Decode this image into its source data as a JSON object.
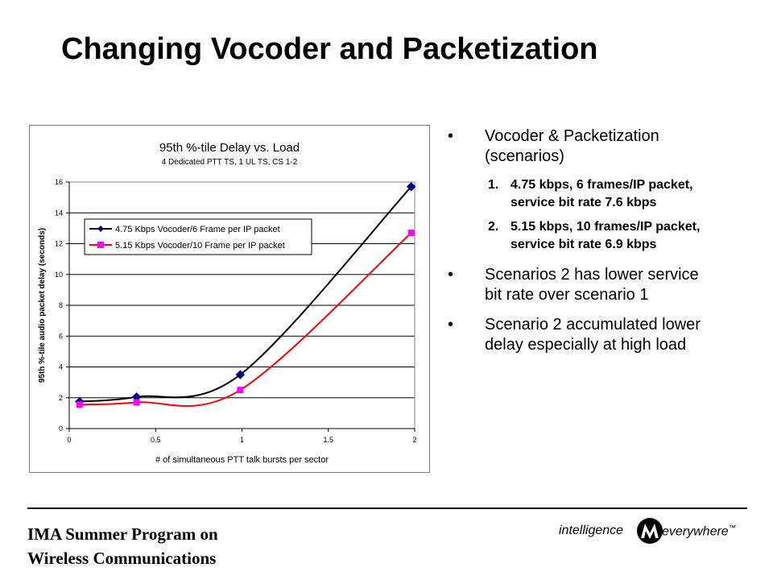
{
  "slide": {
    "title": "Changing Vocoder and Packetization"
  },
  "bullets": {
    "b1": "Vocoder & Packetization (scenarios)",
    "sub": [
      {
        "num": "1.",
        "text": "4.75 kbps, 6 frames/IP packet, service bit rate 7.6 kbps"
      },
      {
        "num": "2.",
        "text": "5.15 kbps, 10 frames/IP packet, service bit rate 6.9 kbps"
      }
    ],
    "b2": "Scenarios 2 has lower service bit rate over scenario 1",
    "b3": "Scenario 2 accumulated lower delay especially at high load",
    "marker": "•"
  },
  "footer": {
    "line1": "IMA Summer Program on",
    "line2": "Wireless Communications",
    "brand_left": "intelligence",
    "brand_right": "everywhere",
    "trademark": "™"
  },
  "chart_data": {
    "type": "line",
    "title": "95th %-tile Delay vs. Load",
    "subtitle": "4 Dedicated PTT TS, 1 UL TS, CS 1-2",
    "xlabel": "# of simultaneous PTT talk bursts per sector",
    "ylabel": "95th %-tile audio packet delay (seconds)",
    "xlim": [
      0,
      2
    ],
    "ylim": [
      0,
      16
    ],
    "xticks": [
      "0",
      "0.5",
      "1",
      "1.5",
      "2"
    ],
    "yticks": [
      "0",
      "2",
      "4",
      "6",
      "8",
      "10",
      "12",
      "14",
      "16"
    ],
    "grid": "horizontal",
    "legend_position": "top-left",
    "series": [
      {
        "name": "4.75 Kbps Vocoder/6 Frame per IP packet",
        "color": "#000000",
        "marker": "diamond",
        "marker_color": "#000080",
        "x": [
          0.06,
          0.39,
          0.99,
          1.98
        ],
        "y": [
          1.75,
          2.05,
          3.5,
          15.7
        ]
      },
      {
        "name": "5.15 Kbps Vocoder/10 Frame per IP packet",
        "color": "#ff0000",
        "marker": "square",
        "marker_color": "#ff00ff",
        "x": [
          0.06,
          0.39,
          0.99,
          1.98
        ],
        "y": [
          1.55,
          1.7,
          2.5,
          12.7
        ]
      }
    ]
  }
}
